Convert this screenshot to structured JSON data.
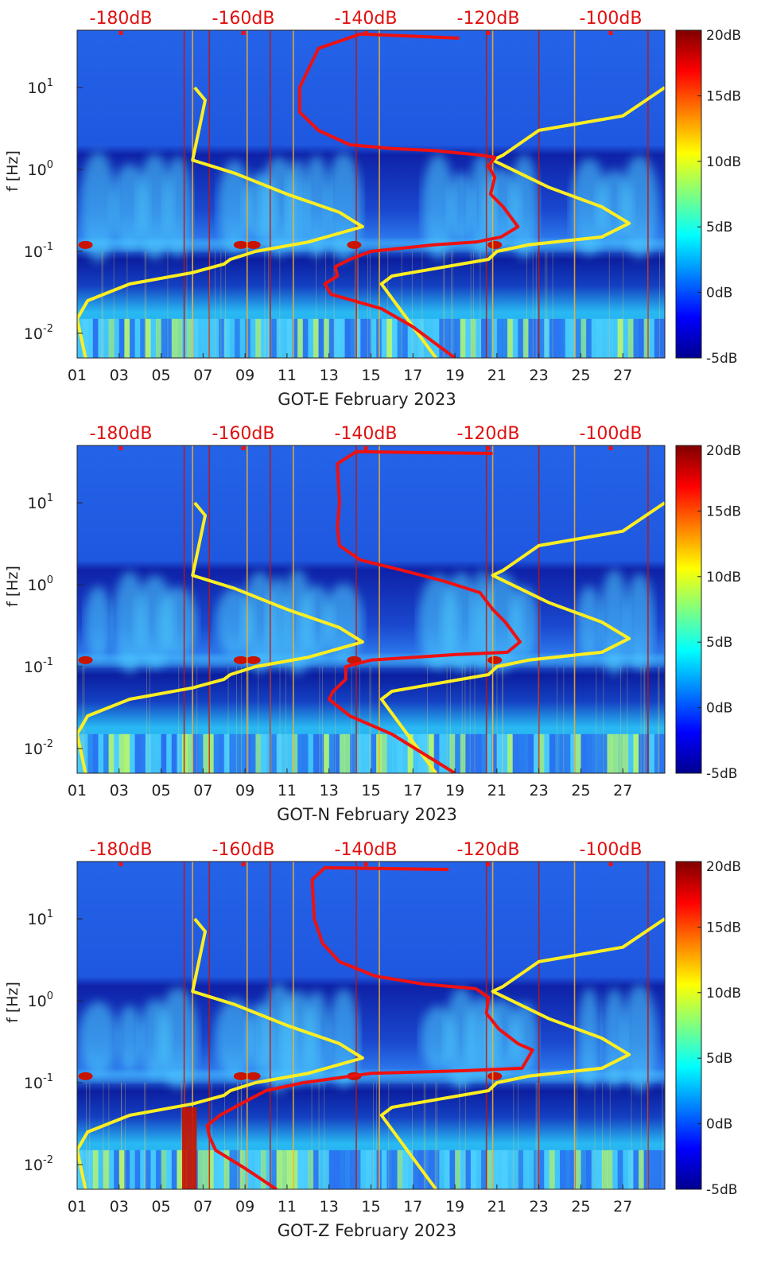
{
  "colors": {
    "background_low": "#0a1ea8",
    "noise_mid": "#2a6ef0",
    "band_high": "#4fd2ff",
    "band_peak": "#b8f870",
    "hot": "#c81400",
    "red_curve": "#ee1111",
    "yellow_curve": "#ffee22",
    "top_label_color": "#e01010"
  },
  "shared": {
    "top_labels": [
      "-180dB",
      "-160dB",
      "-140dB",
      "-120dB",
      "-100dB"
    ],
    "x_ticks": [
      "01",
      "03",
      "05",
      "07",
      "09",
      "11",
      "13",
      "15",
      "17",
      "19",
      "21",
      "23",
      "25",
      "27"
    ],
    "y_ticks": [
      {
        "base": "10",
        "exp": "1",
        "value": 10
      },
      {
        "base": "10",
        "exp": "0",
        "value": 1
      },
      {
        "base": "10",
        "exp": "-1",
        "value": 0.1
      },
      {
        "base": "10",
        "exp": "-2",
        "value": 0.01
      }
    ],
    "ylabel": "f [Hz]",
    "colorbar_ticks": [
      "20dB",
      "15dB",
      "10dB",
      "5dB",
      "0dB",
      "-5dB"
    ],
    "colorbar_range": [
      -5,
      20
    ]
  },
  "chart_data": [
    {
      "type": "heatmap",
      "title": "",
      "xlabel": "GOT-E February 2023",
      "ylabel": "f [Hz]",
      "x_range_days": [
        1,
        29
      ],
      "y_range_hz": [
        0.005,
        50
      ],
      "colorbar_db": [
        -5,
        20
      ],
      "yellow_curve": [
        [
          6.6,
          10
        ],
        [
          7.1,
          7
        ],
        [
          6.8,
          3
        ],
        [
          6.5,
          1.3
        ],
        [
          8.5,
          0.9
        ],
        [
          11,
          0.5
        ],
        [
          13.5,
          0.3
        ],
        [
          14.6,
          0.2
        ],
        [
          12,
          0.13
        ],
        [
          9.5,
          0.1
        ],
        [
          8.3,
          0.08
        ],
        [
          8.0,
          0.07
        ],
        [
          6.5,
          0.055
        ],
        [
          3.5,
          0.04
        ],
        [
          1.5,
          0.025
        ],
        [
          1.0,
          0.015
        ],
        [
          1.4,
          0.005
        ]
      ],
      "yellow_curve_right": [
        [
          29,
          10
        ],
        [
          27,
          4.5
        ],
        [
          23,
          3
        ],
        [
          21.3,
          1.5
        ],
        [
          20.8,
          1.3
        ],
        [
          23.5,
          0.6
        ],
        [
          26,
          0.35
        ],
        [
          27.3,
          0.22
        ],
        [
          26,
          0.15
        ],
        [
          22.5,
          0.12
        ],
        [
          21,
          0.1
        ],
        [
          20.6,
          0.08
        ],
        [
          16,
          0.05
        ],
        [
          15.5,
          0.04
        ],
        [
          18.1,
          0.005
        ]
      ],
      "red_curve": [
        [
          19.2,
          40
        ],
        [
          14.5,
          45
        ],
        [
          12.5,
          30
        ],
        [
          11.6,
          10
        ],
        [
          11.6,
          5
        ],
        [
          12.5,
          3
        ],
        [
          14,
          2
        ],
        [
          16,
          1.8
        ],
        [
          18,
          1.7
        ],
        [
          20.2,
          1.5
        ],
        [
          20.9,
          1.4
        ],
        [
          20.6,
          1.1
        ],
        [
          20.9,
          0.8
        ],
        [
          20.7,
          0.5
        ],
        [
          21.3,
          0.35
        ],
        [
          22,
          0.2
        ],
        [
          21.2,
          0.15
        ],
        [
          20,
          0.13
        ],
        [
          18,
          0.12
        ],
        [
          15,
          0.1
        ],
        [
          14,
          0.08
        ],
        [
          13.3,
          0.065
        ],
        [
          13.4,
          0.05
        ],
        [
          12.8,
          0.04
        ],
        [
          13.1,
          0.03
        ],
        [
          15.5,
          0.02
        ],
        [
          17,
          0.012
        ],
        [
          19,
          0.005
        ]
      ]
    },
    {
      "type": "heatmap",
      "title": "",
      "xlabel": "GOT-N February 2023",
      "ylabel": "f [Hz]",
      "x_range_days": [
        1,
        29
      ],
      "y_range_hz": [
        0.005,
        50
      ],
      "colorbar_db": [
        -5,
        20
      ],
      "yellow_curve": [
        [
          6.6,
          10
        ],
        [
          7.1,
          7
        ],
        [
          6.8,
          3
        ],
        [
          6.5,
          1.3
        ],
        [
          8.5,
          0.9
        ],
        [
          11,
          0.5
        ],
        [
          13.5,
          0.3
        ],
        [
          14.6,
          0.2
        ],
        [
          12,
          0.13
        ],
        [
          9.5,
          0.1
        ],
        [
          8.3,
          0.08
        ],
        [
          8.0,
          0.07
        ],
        [
          6.5,
          0.055
        ],
        [
          3.5,
          0.04
        ],
        [
          1.5,
          0.025
        ],
        [
          1.0,
          0.015
        ],
        [
          1.4,
          0.005
        ]
      ],
      "yellow_curve_right": [
        [
          29,
          10
        ],
        [
          27,
          4.5
        ],
        [
          23,
          3
        ],
        [
          21.3,
          1.5
        ],
        [
          20.8,
          1.3
        ],
        [
          23.5,
          0.6
        ],
        [
          26,
          0.35
        ],
        [
          27.3,
          0.22
        ],
        [
          26,
          0.15
        ],
        [
          22.5,
          0.12
        ],
        [
          21,
          0.1
        ],
        [
          20.6,
          0.08
        ],
        [
          16,
          0.05
        ],
        [
          15.5,
          0.04
        ],
        [
          18.1,
          0.005
        ]
      ],
      "red_curve": [
        [
          20.8,
          40
        ],
        [
          14.3,
          42
        ],
        [
          13.4,
          30
        ],
        [
          13.5,
          10
        ],
        [
          13.4,
          5
        ],
        [
          13.5,
          3
        ],
        [
          14.5,
          2
        ],
        [
          16.5,
          1.5
        ],
        [
          18.5,
          1.1
        ],
        [
          20.2,
          0.8
        ],
        [
          20.8,
          0.5
        ],
        [
          21.4,
          0.35
        ],
        [
          22.1,
          0.2
        ],
        [
          21.5,
          0.15
        ],
        [
          19,
          0.14
        ],
        [
          15,
          0.12
        ],
        [
          13.8,
          0.1
        ],
        [
          13.8,
          0.07
        ],
        [
          13.2,
          0.05
        ],
        [
          13.0,
          0.04
        ],
        [
          14,
          0.025
        ],
        [
          16,
          0.015
        ],
        [
          19,
          0.005
        ]
      ]
    },
    {
      "type": "heatmap",
      "title": "",
      "xlabel": "GOT-Z February 2023",
      "ylabel": "f [Hz]",
      "x_range_days": [
        1,
        29
      ],
      "y_range_hz": [
        0.005,
        50
      ],
      "colorbar_db": [
        -5,
        20
      ],
      "yellow_curve": [
        [
          6.6,
          10
        ],
        [
          7.1,
          7
        ],
        [
          6.8,
          3
        ],
        [
          6.5,
          1.3
        ],
        [
          8.5,
          0.9
        ],
        [
          11,
          0.5
        ],
        [
          13.5,
          0.3
        ],
        [
          14.6,
          0.2
        ],
        [
          12,
          0.13
        ],
        [
          9.5,
          0.1
        ],
        [
          8.3,
          0.08
        ],
        [
          8.0,
          0.07
        ],
        [
          6.5,
          0.055
        ],
        [
          3.5,
          0.04
        ],
        [
          1.5,
          0.025
        ],
        [
          1.0,
          0.015
        ],
        [
          1.4,
          0.005
        ]
      ],
      "yellow_curve_right": [
        [
          29,
          10
        ],
        [
          27,
          4.5
        ],
        [
          23,
          3
        ],
        [
          21.3,
          1.5
        ],
        [
          20.8,
          1.3
        ],
        [
          23.5,
          0.6
        ],
        [
          26,
          0.35
        ],
        [
          27.3,
          0.22
        ],
        [
          26,
          0.15
        ],
        [
          22.5,
          0.12
        ],
        [
          21,
          0.1
        ],
        [
          20.6,
          0.08
        ],
        [
          16,
          0.05
        ],
        [
          15.5,
          0.04
        ],
        [
          18.1,
          0.005
        ]
      ],
      "red_curve": [
        [
          18.7,
          40
        ],
        [
          12.8,
          42
        ],
        [
          12.2,
          30
        ],
        [
          12.3,
          10
        ],
        [
          12.7,
          5
        ],
        [
          13.5,
          3
        ],
        [
          15.2,
          2
        ],
        [
          17.5,
          1.6
        ],
        [
          20,
          1.4
        ],
        [
          20.6,
          1.1
        ],
        [
          20.5,
          0.7
        ],
        [
          21.1,
          0.45
        ],
        [
          22,
          0.3
        ],
        [
          22.7,
          0.25
        ],
        [
          22.2,
          0.15
        ],
        [
          19.5,
          0.14
        ],
        [
          15,
          0.13
        ],
        [
          11.8,
          0.1
        ],
        [
          10,
          0.08
        ],
        [
          8.8,
          0.055
        ],
        [
          7.8,
          0.04
        ],
        [
          7.2,
          0.03
        ],
        [
          7.3,
          0.022
        ],
        [
          7.6,
          0.015
        ],
        [
          9,
          0.009
        ],
        [
          10.5,
          0.005
        ]
      ]
    }
  ]
}
